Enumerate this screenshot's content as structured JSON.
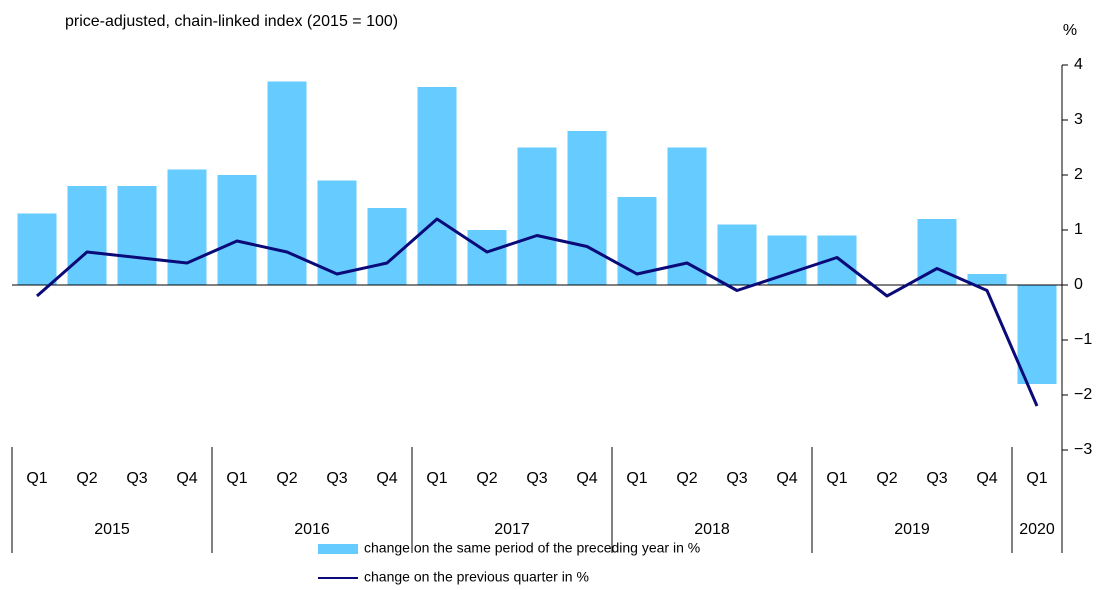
{
  "chart_data": {
    "type": "bar_line",
    "title": "price-adjusted, chain-linked index (2015 = 100)",
    "y_unit": "%",
    "categories": [
      "Q1",
      "Q2",
      "Q3",
      "Q4",
      "Q1",
      "Q2",
      "Q3",
      "Q4",
      "Q1",
      "Q2",
      "Q3",
      "Q4",
      "Q1",
      "Q2",
      "Q3",
      "Q4",
      "Q1",
      "Q2",
      "Q3",
      "Q4",
      "Q1"
    ],
    "years": [
      "2015",
      "2016",
      "2017",
      "2018",
      "2019",
      "2020"
    ],
    "series": [
      {
        "name": "change on the same period of the preceding year in %",
        "type": "bar",
        "color": "#66ccff",
        "values": [
          1.3,
          1.8,
          1.8,
          2.1,
          2.0,
          3.7,
          1.9,
          1.4,
          3.6,
          1.0,
          2.5,
          2.8,
          1.6,
          2.5,
          1.1,
          0.9,
          0.9,
          0.0,
          1.2,
          0.2,
          -1.8
        ]
      },
      {
        "name": "change on the previous quarter in %",
        "type": "line",
        "color": "#0a0a78",
        "values": [
          -0.2,
          0.6,
          0.5,
          0.4,
          0.8,
          0.6,
          0.2,
          0.4,
          1.2,
          0.6,
          0.9,
          0.7,
          0.2,
          0.4,
          -0.1,
          0.2,
          0.5,
          -0.2,
          0.3,
          -0.1,
          -2.2
        ]
      }
    ],
    "ylim": [
      -3,
      4
    ],
    "yticks": [
      {
        "value": -3,
        "label": "−3"
      },
      {
        "value": -2,
        "label": "−2"
      },
      {
        "value": -1,
        "label": "−1"
      },
      0,
      1,
      2,
      3,
      4
    ]
  }
}
